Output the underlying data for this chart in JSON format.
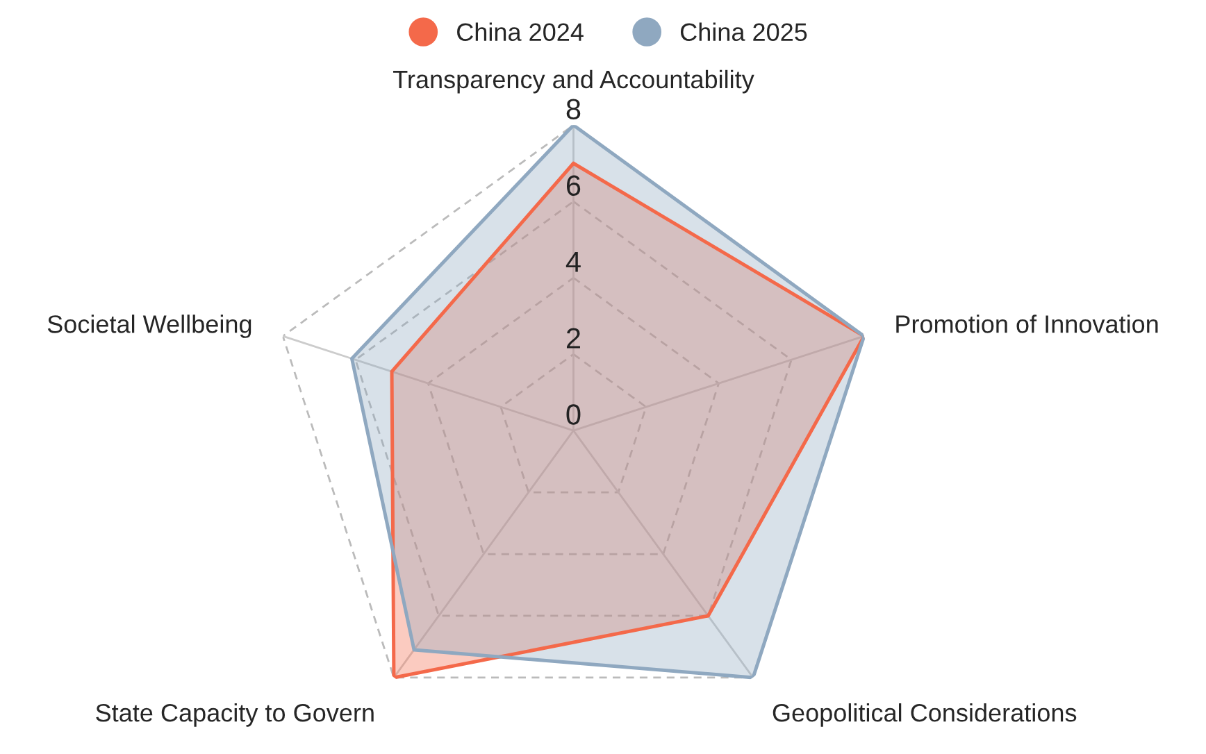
{
  "chart_data": {
    "type": "radar",
    "categories": [
      "Transparency and Accountability",
      "Promotion of Innovation",
      "Geopolitical Considerations",
      "State Capacity to Govern",
      "Societal Wellbeing"
    ],
    "series": [
      {
        "name": "China 2024",
        "color": "#f4694a",
        "values": [
          7,
          8,
          6,
          8,
          5
        ]
      },
      {
        "name": "China 2025",
        "color": "#8fa8c0",
        "values": [
          8,
          8,
          8,
          7.1,
          6.1
        ]
      }
    ],
    "ylim": [
      0,
      8
    ],
    "yticks": [
      0,
      2,
      4,
      6,
      8
    ],
    "grid": true,
    "legend": "top"
  }
}
